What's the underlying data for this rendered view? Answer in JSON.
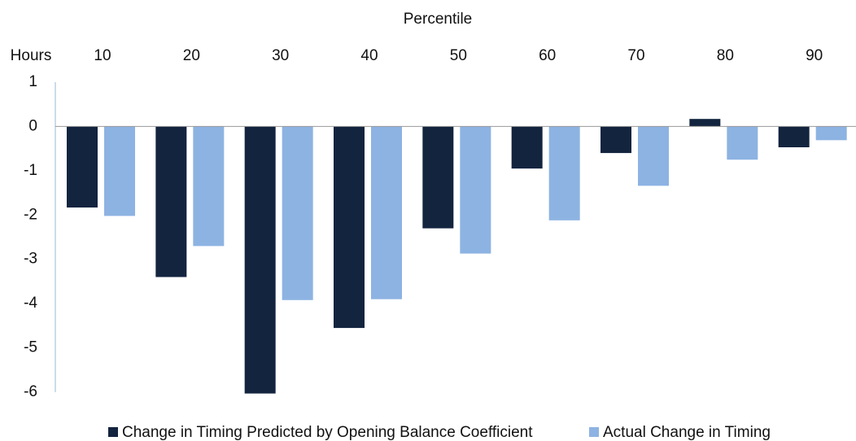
{
  "chart_data": {
    "type": "bar",
    "title": "Percentile",
    "y_axis_label": "Hours",
    "categories": [
      "10",
      "20",
      "30",
      "40",
      "50",
      "60",
      "70",
      "80",
      "90"
    ],
    "series": [
      {
        "name": "Change in Timing Predicted by Opening Balance Coefficient",
        "color": "#13243f",
        "values": [
          -1.83,
          -3.4,
          -6.03,
          -4.55,
          -2.3,
          -0.95,
          -0.6,
          0.17,
          -0.47
        ]
      },
      {
        "name": "Actual Change in Timing",
        "color": "#8db3e2",
        "values": [
          -2.02,
          -2.7,
          -3.92,
          -3.9,
          -2.87,
          -2.12,
          -1.34,
          -0.75,
          -0.31
        ]
      }
    ],
    "ylim": [
      -6,
      1
    ],
    "yticks": [
      1,
      0,
      -1,
      -2,
      -3,
      -4,
      -5,
      -6
    ]
  }
}
